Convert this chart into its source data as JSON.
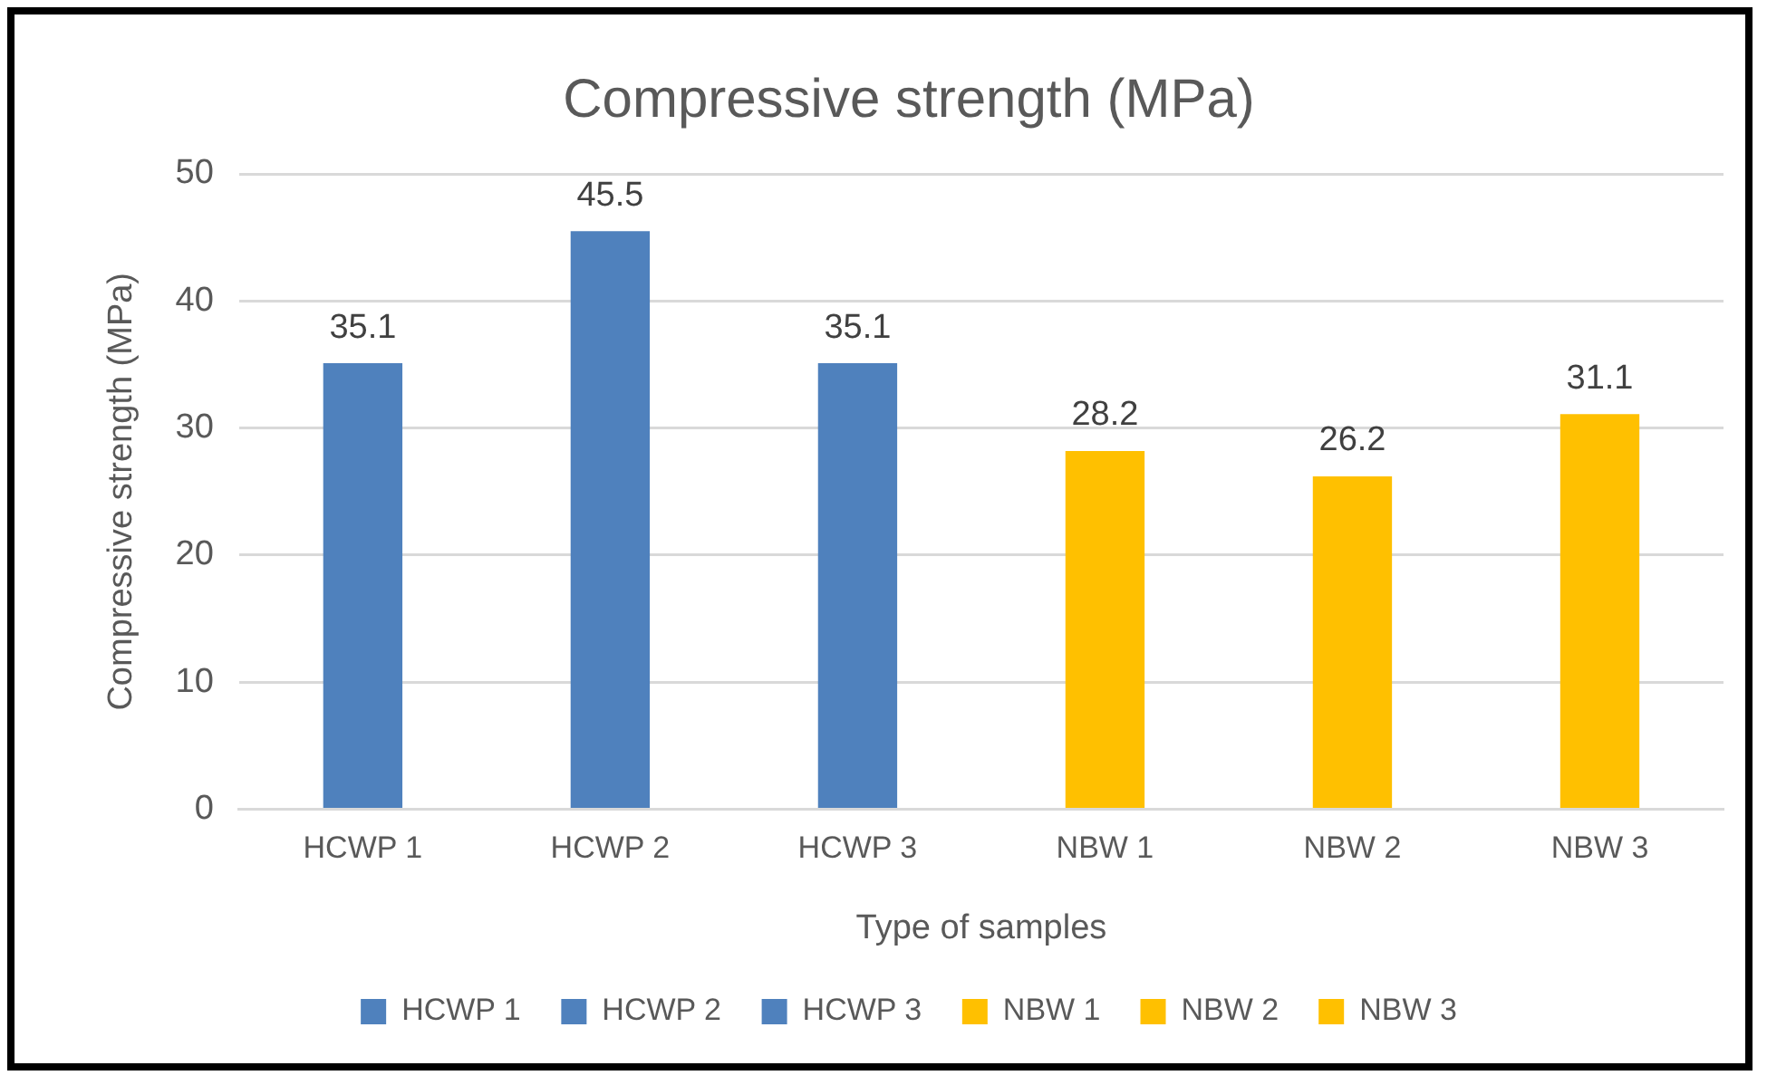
{
  "chart_data": {
    "type": "bar",
    "title": "Compressive strength (MPa)",
    "xlabel": "Type of samples",
    "ylabel": "Compressive strength (MPa)",
    "categories": [
      "HCWP 1",
      "HCWP 2",
      "HCWP 3",
      "NBW 1",
      "NBW 2",
      "NBW 3"
    ],
    "series": [
      {
        "name": "HCWP 1",
        "color": "#4f81bd",
        "values": [
          35.1,
          null,
          null,
          null,
          null,
          null
        ]
      },
      {
        "name": "HCWP 2",
        "color": "#4f81bd",
        "values": [
          null,
          45.5,
          null,
          null,
          null,
          null
        ]
      },
      {
        "name": "HCWP 3",
        "color": "#4f81bd",
        "values": [
          null,
          null,
          35.1,
          null,
          null,
          null
        ]
      },
      {
        "name": "NBW 1",
        "color": "#ffc000",
        "values": [
          null,
          null,
          null,
          28.2,
          null,
          null
        ]
      },
      {
        "name": "NBW 2",
        "color": "#ffc000",
        "values": [
          null,
          null,
          null,
          null,
          26.2,
          null
        ]
      },
      {
        "name": "NBW 3",
        "color": "#ffc000",
        "values": [
          null,
          null,
          null,
          null,
          null,
          31.1
        ]
      }
    ],
    "ylim": [
      0,
      50
    ],
    "yticks": [
      0,
      10,
      20,
      30,
      40,
      50
    ],
    "grid": "y",
    "legend": "bottom",
    "data_labels": true
  }
}
